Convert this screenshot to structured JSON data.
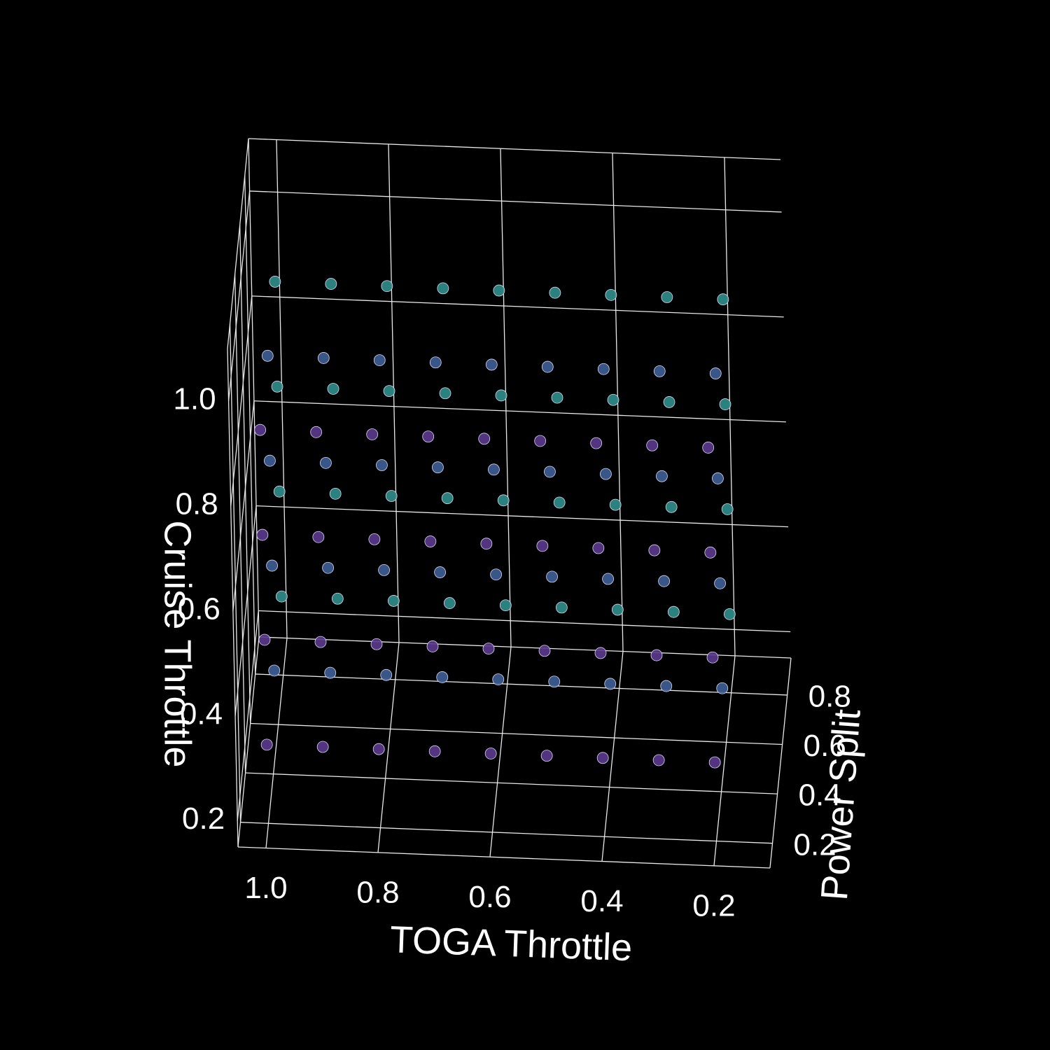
{
  "chart_data": {
    "type": "scatter3d",
    "xlabel": "TOGA Throttle",
    "ylabel": "Cruise Throttle",
    "zlabel": "Power Split",
    "xlim": [
      0.1,
      1.05
    ],
    "ylim": [
      0.15,
      1.1
    ],
    "zlim": [
      0.1,
      0.95
    ],
    "xticks": [
      0.2,
      0.4,
      0.6,
      0.8,
      {
        "value": 1,
        "label": "1.0"
      }
    ],
    "yticks": [
      0.2,
      0.4,
      0.6,
      0.8,
      {
        "value": 1,
        "label": "1.0"
      }
    ],
    "zticks": [
      0.2,
      0.4,
      0.6,
      0.8
    ],
    "grid": true,
    "series": [
      {
        "color": "#2f8f8c",
        "x": [
          1.0,
          1.0,
          1.0,
          1.0,
          0.9,
          0.9,
          0.9,
          0.9,
          0.8,
          0.8,
          0.8,
          0.8,
          0.7,
          0.7,
          0.7,
          0.7,
          0.6,
          0.6,
          0.6,
          0.6,
          0.5,
          0.5,
          0.5,
          0.5,
          0.4,
          0.4,
          0.4,
          0.4,
          0.3,
          0.3,
          0.3,
          0.3,
          0.2,
          0.2,
          0.2,
          0.2
        ],
        "y": [
          0.3,
          0.5,
          0.7,
          0.9,
          0.3,
          0.5,
          0.7,
          0.9,
          0.3,
          0.5,
          0.7,
          0.9,
          0.3,
          0.5,
          0.7,
          0.9,
          0.3,
          0.5,
          0.7,
          0.9,
          0.3,
          0.5,
          0.7,
          0.9,
          0.3,
          0.5,
          0.7,
          0.9,
          0.3,
          0.5,
          0.7,
          0.9,
          0.3,
          0.5,
          0.7,
          0.9
        ],
        "z": [
          0.8,
          0.8,
          0.8,
          0.8,
          0.8,
          0.8,
          0.8,
          0.8,
          0.8,
          0.8,
          0.8,
          0.8,
          0.8,
          0.8,
          0.8,
          0.8,
          0.8,
          0.8,
          0.8,
          0.8,
          0.8,
          0.8,
          0.8,
          0.8,
          0.8,
          0.8,
          0.8,
          0.8,
          0.8,
          0.8,
          0.8,
          0.8,
          0.8,
          0.8,
          0.8,
          0.8
        ]
      },
      {
        "color": "#3e5f96",
        "x": [
          1.0,
          1.0,
          1.0,
          1.0,
          0.9,
          0.9,
          0.9,
          0.9,
          0.8,
          0.8,
          0.8,
          0.8,
          0.7,
          0.7,
          0.7,
          0.7,
          0.6,
          0.6,
          0.6,
          0.6,
          0.5,
          0.5,
          0.5,
          0.5,
          0.4,
          0.4,
          0.4,
          0.4,
          0.3,
          0.3,
          0.3,
          0.3,
          0.2,
          0.2,
          0.2,
          0.2
        ],
        "y": [
          0.3,
          0.5,
          0.7,
          0.9,
          0.3,
          0.5,
          0.7,
          0.9,
          0.3,
          0.5,
          0.7,
          0.9,
          0.3,
          0.5,
          0.7,
          0.9,
          0.3,
          0.5,
          0.7,
          0.9,
          0.3,
          0.5,
          0.7,
          0.9,
          0.3,
          0.5,
          0.7,
          0.9,
          0.3,
          0.5,
          0.7,
          0.9,
          0.3,
          0.5,
          0.7,
          0.9
        ],
        "z": [
          0.5,
          0.5,
          0.5,
          0.5,
          0.5,
          0.5,
          0.5,
          0.5,
          0.5,
          0.5,
          0.5,
          0.5,
          0.5,
          0.5,
          0.5,
          0.5,
          0.5,
          0.5,
          0.5,
          0.5,
          0.5,
          0.5,
          0.5,
          0.5,
          0.5,
          0.5,
          0.5,
          0.5,
          0.5,
          0.5,
          0.5,
          0.5,
          0.5,
          0.5,
          0.5,
          0.5
        ]
      },
      {
        "color": "#5b3a8e",
        "x": [
          1.0,
          1.0,
          1.0,
          1.0,
          0.9,
          0.9,
          0.9,
          0.9,
          0.8,
          0.8,
          0.8,
          0.8,
          0.7,
          0.7,
          0.7,
          0.7,
          0.6,
          0.6,
          0.6,
          0.6,
          0.5,
          0.5,
          0.5,
          0.5,
          0.4,
          0.4,
          0.4,
          0.4,
          0.3,
          0.3,
          0.3,
          0.3,
          0.2,
          0.2,
          0.2,
          0.2
        ],
        "y": [
          0.3,
          0.5,
          0.7,
          0.9,
          0.3,
          0.5,
          0.7,
          0.9,
          0.3,
          0.5,
          0.7,
          0.9,
          0.3,
          0.5,
          0.7,
          0.9,
          0.3,
          0.5,
          0.7,
          0.9,
          0.3,
          0.5,
          0.7,
          0.9,
          0.3,
          0.5,
          0.7,
          0.9,
          0.3,
          0.5,
          0.7,
          0.9,
          0.3,
          0.5,
          0.7,
          0.9
        ],
        "z": [
          0.2,
          0.2,
          0.2,
          0.2,
          0.2,
          0.2,
          0.2,
          0.2,
          0.2,
          0.2,
          0.2,
          0.2,
          0.2,
          0.2,
          0.2,
          0.2,
          0.2,
          0.2,
          0.2,
          0.2,
          0.2,
          0.2,
          0.2,
          0.2,
          0.2,
          0.2,
          0.2,
          0.2,
          0.2,
          0.2,
          0.2,
          0.2,
          0.2,
          0.2,
          0.2,
          0.2
        ]
      }
    ]
  }
}
